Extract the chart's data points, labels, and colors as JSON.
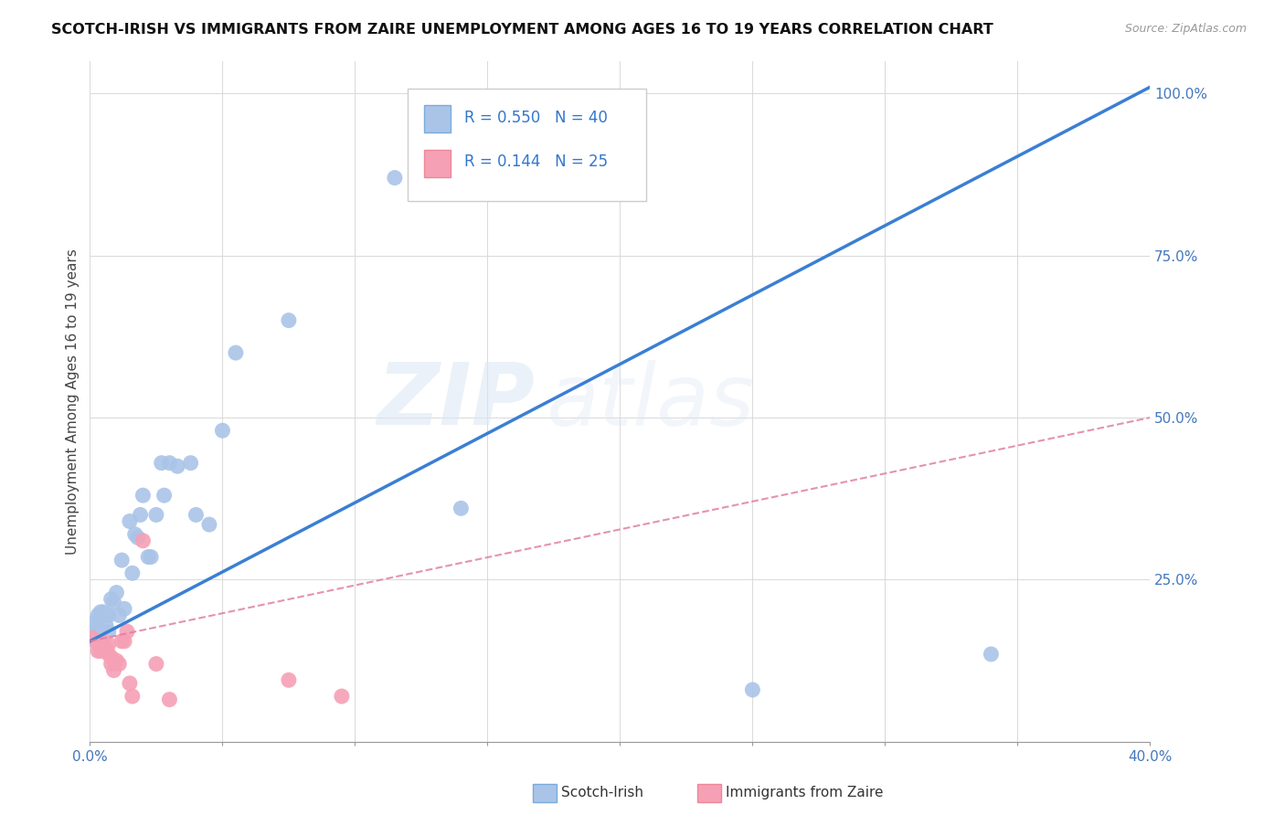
{
  "title": "SCOTCH-IRISH VS IMMIGRANTS FROM ZAIRE UNEMPLOYMENT AMONG AGES 16 TO 19 YEARS CORRELATION CHART",
  "source": "Source: ZipAtlas.com",
  "ylabel": "Unemployment Among Ages 16 to 19 years",
  "xlim": [
    0.0,
    0.4
  ],
  "ylim": [
    0.0,
    1.05
  ],
  "xticks": [
    0.0,
    0.05,
    0.1,
    0.15,
    0.2,
    0.25,
    0.3,
    0.35,
    0.4
  ],
  "xticklabels": [
    "0.0%",
    "",
    "",
    "",
    "",
    "",
    "",
    "",
    "40.0%"
  ],
  "ytick_positions": [
    0.25,
    0.5,
    0.75,
    1.0
  ],
  "ytick_labels": [
    "25.0%",
    "50.0%",
    "75.0%",
    "100.0%"
  ],
  "scotch_irish_R": 0.55,
  "scotch_irish_N": 40,
  "zaire_R": 0.144,
  "zaire_N": 25,
  "scotch_irish_color": "#aac4e8",
  "zaire_color": "#f5a0b5",
  "scotch_irish_line_color": "#3a7fd4",
  "zaire_line_color": "#e080a0",
  "grid_color": "#d8d8d8",
  "background_color": "#ffffff",
  "watermark_zip": "ZIP",
  "watermark_atlas": "atlas",
  "si_line_x0": 0.0,
  "si_line_y0": 0.155,
  "si_line_x1": 0.4,
  "si_line_y1": 1.01,
  "z_line_x0": 0.0,
  "z_line_y0": 0.155,
  "z_line_x1": 0.4,
  "z_line_y1": 0.5,
  "scotch_irish_x": [
    0.001,
    0.002,
    0.003,
    0.003,
    0.004,
    0.005,
    0.005,
    0.006,
    0.006,
    0.007,
    0.007,
    0.008,
    0.009,
    0.01,
    0.011,
    0.012,
    0.013,
    0.015,
    0.016,
    0.017,
    0.018,
    0.019,
    0.02,
    0.022,
    0.023,
    0.025,
    0.027,
    0.028,
    0.03,
    0.033,
    0.038,
    0.04,
    0.045,
    0.05,
    0.055,
    0.075,
    0.115,
    0.14,
    0.25,
    0.34
  ],
  "scotch_irish_y": [
    0.175,
    0.185,
    0.195,
    0.175,
    0.2,
    0.2,
    0.195,
    0.195,
    0.18,
    0.195,
    0.17,
    0.22,
    0.215,
    0.23,
    0.195,
    0.28,
    0.205,
    0.34,
    0.26,
    0.32,
    0.315,
    0.35,
    0.38,
    0.285,
    0.285,
    0.35,
    0.43,
    0.38,
    0.43,
    0.425,
    0.43,
    0.35,
    0.335,
    0.48,
    0.6,
    0.65,
    0.87,
    0.36,
    0.08,
    0.135
  ],
  "zaire_x": [
    0.001,
    0.002,
    0.003,
    0.004,
    0.005,
    0.005,
    0.006,
    0.006,
    0.007,
    0.007,
    0.008,
    0.008,
    0.009,
    0.01,
    0.011,
    0.012,
    0.013,
    0.014,
    0.015,
    0.016,
    0.02,
    0.025,
    0.03,
    0.075,
    0.095
  ],
  "zaire_y": [
    0.16,
    0.155,
    0.14,
    0.14,
    0.155,
    0.15,
    0.14,
    0.145,
    0.135,
    0.15,
    0.13,
    0.12,
    0.11,
    0.125,
    0.12,
    0.155,
    0.155,
    0.17,
    0.09,
    0.07,
    0.31,
    0.12,
    0.065,
    0.095,
    0.07
  ]
}
